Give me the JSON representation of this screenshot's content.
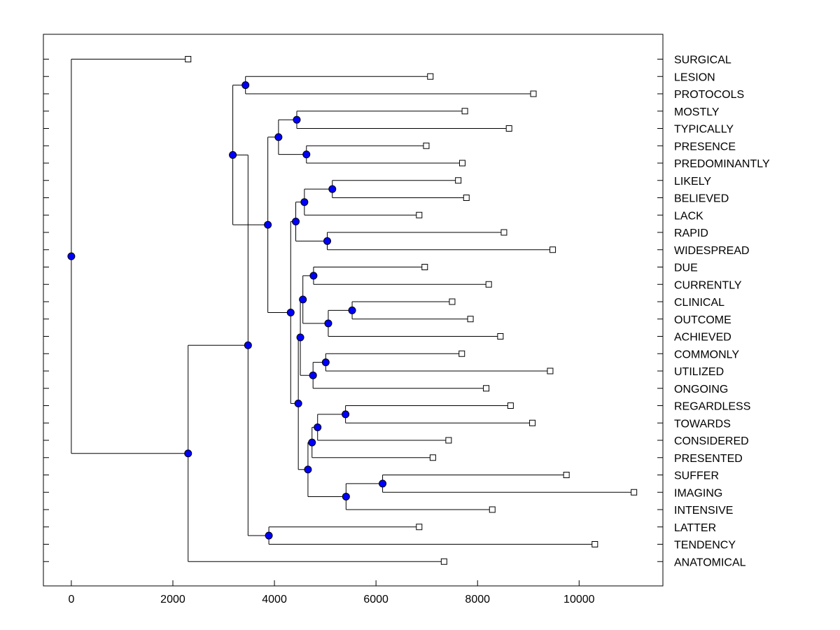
{
  "chart_data": {
    "type": "dendrogram",
    "xlim": [
      -550,
      11650
    ],
    "x_ticks": [
      0,
      2000,
      4000,
      6000,
      8000,
      10000
    ],
    "x_tick_labels": [
      "0",
      "2000",
      "4000",
      "6000",
      "8000",
      "10000"
    ],
    "leaves": [
      {
        "label": "SURGICAL",
        "x": 2300
      },
      {
        "label": "LESION",
        "x": 7070
      },
      {
        "label": "PROTOCOLS",
        "x": 9100
      },
      {
        "label": "MOSTLY",
        "x": 7750
      },
      {
        "label": "TYPICALLY",
        "x": 8620
      },
      {
        "label": "PRESENCE",
        "x": 6990
      },
      {
        "label": "PREDOMINANTLY",
        "x": 7700
      },
      {
        "label": "LIKELY",
        "x": 7620
      },
      {
        "label": "BELIEVED",
        "x": 7780
      },
      {
        "label": "LACK",
        "x": 6850
      },
      {
        "label": "RAPID",
        "x": 8520
      },
      {
        "label": "WIDESPREAD",
        "x": 9480
      },
      {
        "label": "DUE",
        "x": 6960
      },
      {
        "label": "CURRENTLY",
        "x": 8220
      },
      {
        "label": "CLINICAL",
        "x": 7500
      },
      {
        "label": "OUTCOME",
        "x": 7860
      },
      {
        "label": "ACHIEVED",
        "x": 8450
      },
      {
        "label": "COMMONLY",
        "x": 7690
      },
      {
        "label": "UTILIZED",
        "x": 9430
      },
      {
        "label": "ONGOING",
        "x": 8170
      },
      {
        "label": "REGARDLESS",
        "x": 8650
      },
      {
        "label": "TOWARDS",
        "x": 9080
      },
      {
        "label": "CONSIDERED",
        "x": 7430
      },
      {
        "label": "PRESENTED",
        "x": 7120
      },
      {
        "label": "SUFFER",
        "x": 9750
      },
      {
        "label": "IMAGING",
        "x": 11080
      },
      {
        "label": "INTENSIVE",
        "x": 8290
      },
      {
        "label": "LATTER",
        "x": 6850
      },
      {
        "label": "TENDENCY",
        "x": 10310
      },
      {
        "label": "ANATOMICAL",
        "x": 7340
      }
    ],
    "merges": [
      {
        "id": "n_lesion_protocols",
        "x": 3430,
        "children": [
          "LESION",
          "PROTOCOLS"
        ]
      },
      {
        "id": "n_mostly_typically",
        "x": 4440,
        "children": [
          "MOSTLY",
          "TYPICALLY"
        ]
      },
      {
        "id": "n_presence_predom",
        "x": 4630,
        "children": [
          "PRESENCE",
          "PREDOMINANTLY"
        ]
      },
      {
        "id": "n_4group",
        "x": 4080,
        "children": [
          "n_mostly_typically",
          "n_presence_predom"
        ]
      },
      {
        "id": "n_likely_believed",
        "x": 5140,
        "children": [
          "LIKELY",
          "BELIEVED"
        ]
      },
      {
        "id": "n_lb_lack",
        "x": 4590,
        "children": [
          "n_likely_believed",
          "LACK"
        ]
      },
      {
        "id": "n_rapid_widespread",
        "x": 5040,
        "children": [
          "RAPID",
          "WIDESPREAD"
        ]
      },
      {
        "id": "n_5group",
        "x": 4420,
        "children": [
          "n_lb_lack",
          "n_rapid_widespread"
        ]
      },
      {
        "id": "n_due_currently",
        "x": 4770,
        "children": [
          "DUE",
          "CURRENTLY"
        ]
      },
      {
        "id": "n_clinical_outcome",
        "x": 5530,
        "children": [
          "CLINICAL",
          "OUTCOME"
        ]
      },
      {
        "id": "n_co_achieved",
        "x": 5060,
        "children": [
          "n_clinical_outcome",
          "ACHIEVED"
        ]
      },
      {
        "id": "n_5b",
        "x": 4560,
        "children": [
          "n_due_currently",
          "n_co_achieved"
        ]
      },
      {
        "id": "n_commonly_utilized",
        "x": 5010,
        "children": [
          "COMMONLY",
          "UTILIZED"
        ]
      },
      {
        "id": "n_cu_ongoing",
        "x": 4760,
        "children": [
          "n_commonly_utilized",
          "ONGOING"
        ]
      },
      {
        "id": "n_8group",
        "x": 4510,
        "children": [
          "n_5b",
          "n_cu_ongoing"
        ]
      },
      {
        "id": "n_regardless_towards",
        "x": 5400,
        "children": [
          "REGARDLESS",
          "TOWARDS"
        ]
      },
      {
        "id": "n_rt_considered",
        "x": 4850,
        "children": [
          "n_regardless_towards",
          "CONSIDERED"
        ]
      },
      {
        "id": "n_rtc_presented",
        "x": 4740,
        "children": [
          "n_rt_considered",
          "PRESENTED"
        ]
      },
      {
        "id": "n_suffer_imaging",
        "x": 6130,
        "children": [
          "SUFFER",
          "IMAGING"
        ]
      },
      {
        "id": "n_si_intensive",
        "x": 5410,
        "children": [
          "n_suffer_imaging",
          "INTENSIVE"
        ]
      },
      {
        "id": "n_7group",
        "x": 4660,
        "children": [
          "n_rtc_presented",
          "n_si_intensive"
        ]
      },
      {
        "id": "n_15group",
        "x": 4470,
        "children": [
          "n_8group",
          "n_7group"
        ]
      },
      {
        "id": "n_20group",
        "x": 4320,
        "children": [
          "n_5group",
          "n_15group"
        ]
      },
      {
        "id": "n_24group",
        "x": 3870,
        "children": [
          "n_4group",
          "n_20group"
        ]
      },
      {
        "id": "n_26group",
        "x": 3180,
        "children": [
          "n_lesion_protocols",
          "n_24group"
        ]
      },
      {
        "id": "n_latter_tendency",
        "x": 3890,
        "children": [
          "LATTER",
          "TENDENCY"
        ]
      },
      {
        "id": "n_28group",
        "x": 3480,
        "children": [
          "n_26group",
          "n_latter_tendency"
        ]
      },
      {
        "id": "n_29group",
        "x": 2300,
        "children": [
          "n_28group",
          "ANATOMICAL"
        ]
      },
      {
        "id": "n_root",
        "x": 0,
        "children": [
          "SURGICAL",
          "n_29group"
        ]
      }
    ]
  }
}
